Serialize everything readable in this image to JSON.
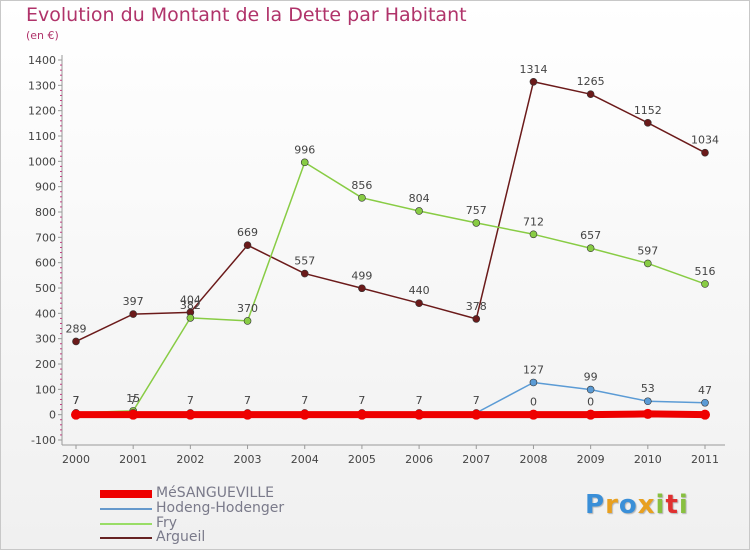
{
  "title": "Evolution du Montant de la Dette par Habitant",
  "subtitle": "(en €)",
  "logo": "Proxiti",
  "legend": [
    {
      "name": "MéSANGUEVILLE",
      "color": "#ee0000"
    },
    {
      "name": "Hodeng-Hodenger",
      "color": "#6699cc"
    },
    {
      "name": "Fry",
      "color": "#99dd66"
    },
    {
      "name": "Argueil",
      "color": "#662222"
    }
  ],
  "chart_data": {
    "type": "line",
    "title": "Evolution du Montant de la Dette par Habitant",
    "ylabel": "(en €)",
    "xlabel": "",
    "categories": [
      "2000",
      "2001",
      "2002",
      "2003",
      "2004",
      "2005",
      "2006",
      "2007",
      "2008",
      "2009",
      "2010",
      "2011"
    ],
    "ylim": [
      -100,
      1400
    ],
    "yticks": [
      -100,
      0,
      100,
      200,
      300,
      400,
      500,
      600,
      700,
      800,
      900,
      1000,
      1100,
      1200,
      1300,
      1400
    ],
    "grid": false,
    "legend_position": "bottom-left",
    "series": [
      {
        "name": "MéSANGUEVILLE",
        "color": "#ee0000",
        "values": [
          0,
          0,
          0,
          0,
          0,
          0,
          0,
          0,
          0,
          0,
          3,
          0
        ],
        "labels": [
          "",
          "",
          "",
          "",
          "",
          "",
          "",
          "",
          "0",
          "0",
          "",
          ""
        ]
      },
      {
        "name": "Hodeng-Hodenger",
        "color": "#5b9bd5",
        "values": [
          7,
          7,
          7,
          7,
          7,
          7,
          7,
          7,
          127,
          99,
          53,
          47
        ],
        "labels": [
          "7",
          "7",
          "7",
          "7",
          "7",
          "7",
          "7",
          "7",
          "127",
          "99",
          "53",
          "47"
        ]
      },
      {
        "name": "Fry",
        "color": "#88cc44",
        "values": [
          7,
          15,
          382,
          370,
          996,
          856,
          804,
          757,
          712,
          657,
          597,
          516
        ],
        "labels": [
          "7",
          "15",
          "382",
          "370",
          "996",
          "856",
          "804",
          "757",
          "712",
          "657",
          "597",
          "516"
        ]
      },
      {
        "name": "Argueil",
        "color": "#6b1a1a",
        "values": [
          289,
          397,
          404,
          669,
          557,
          499,
          440,
          378,
          1314,
          1265,
          1152,
          1034
        ],
        "labels": [
          "289",
          "397",
          "404",
          "669",
          "557",
          "499",
          "440",
          "378",
          "1314",
          "1265",
          "1152",
          "1034"
        ]
      }
    ]
  }
}
